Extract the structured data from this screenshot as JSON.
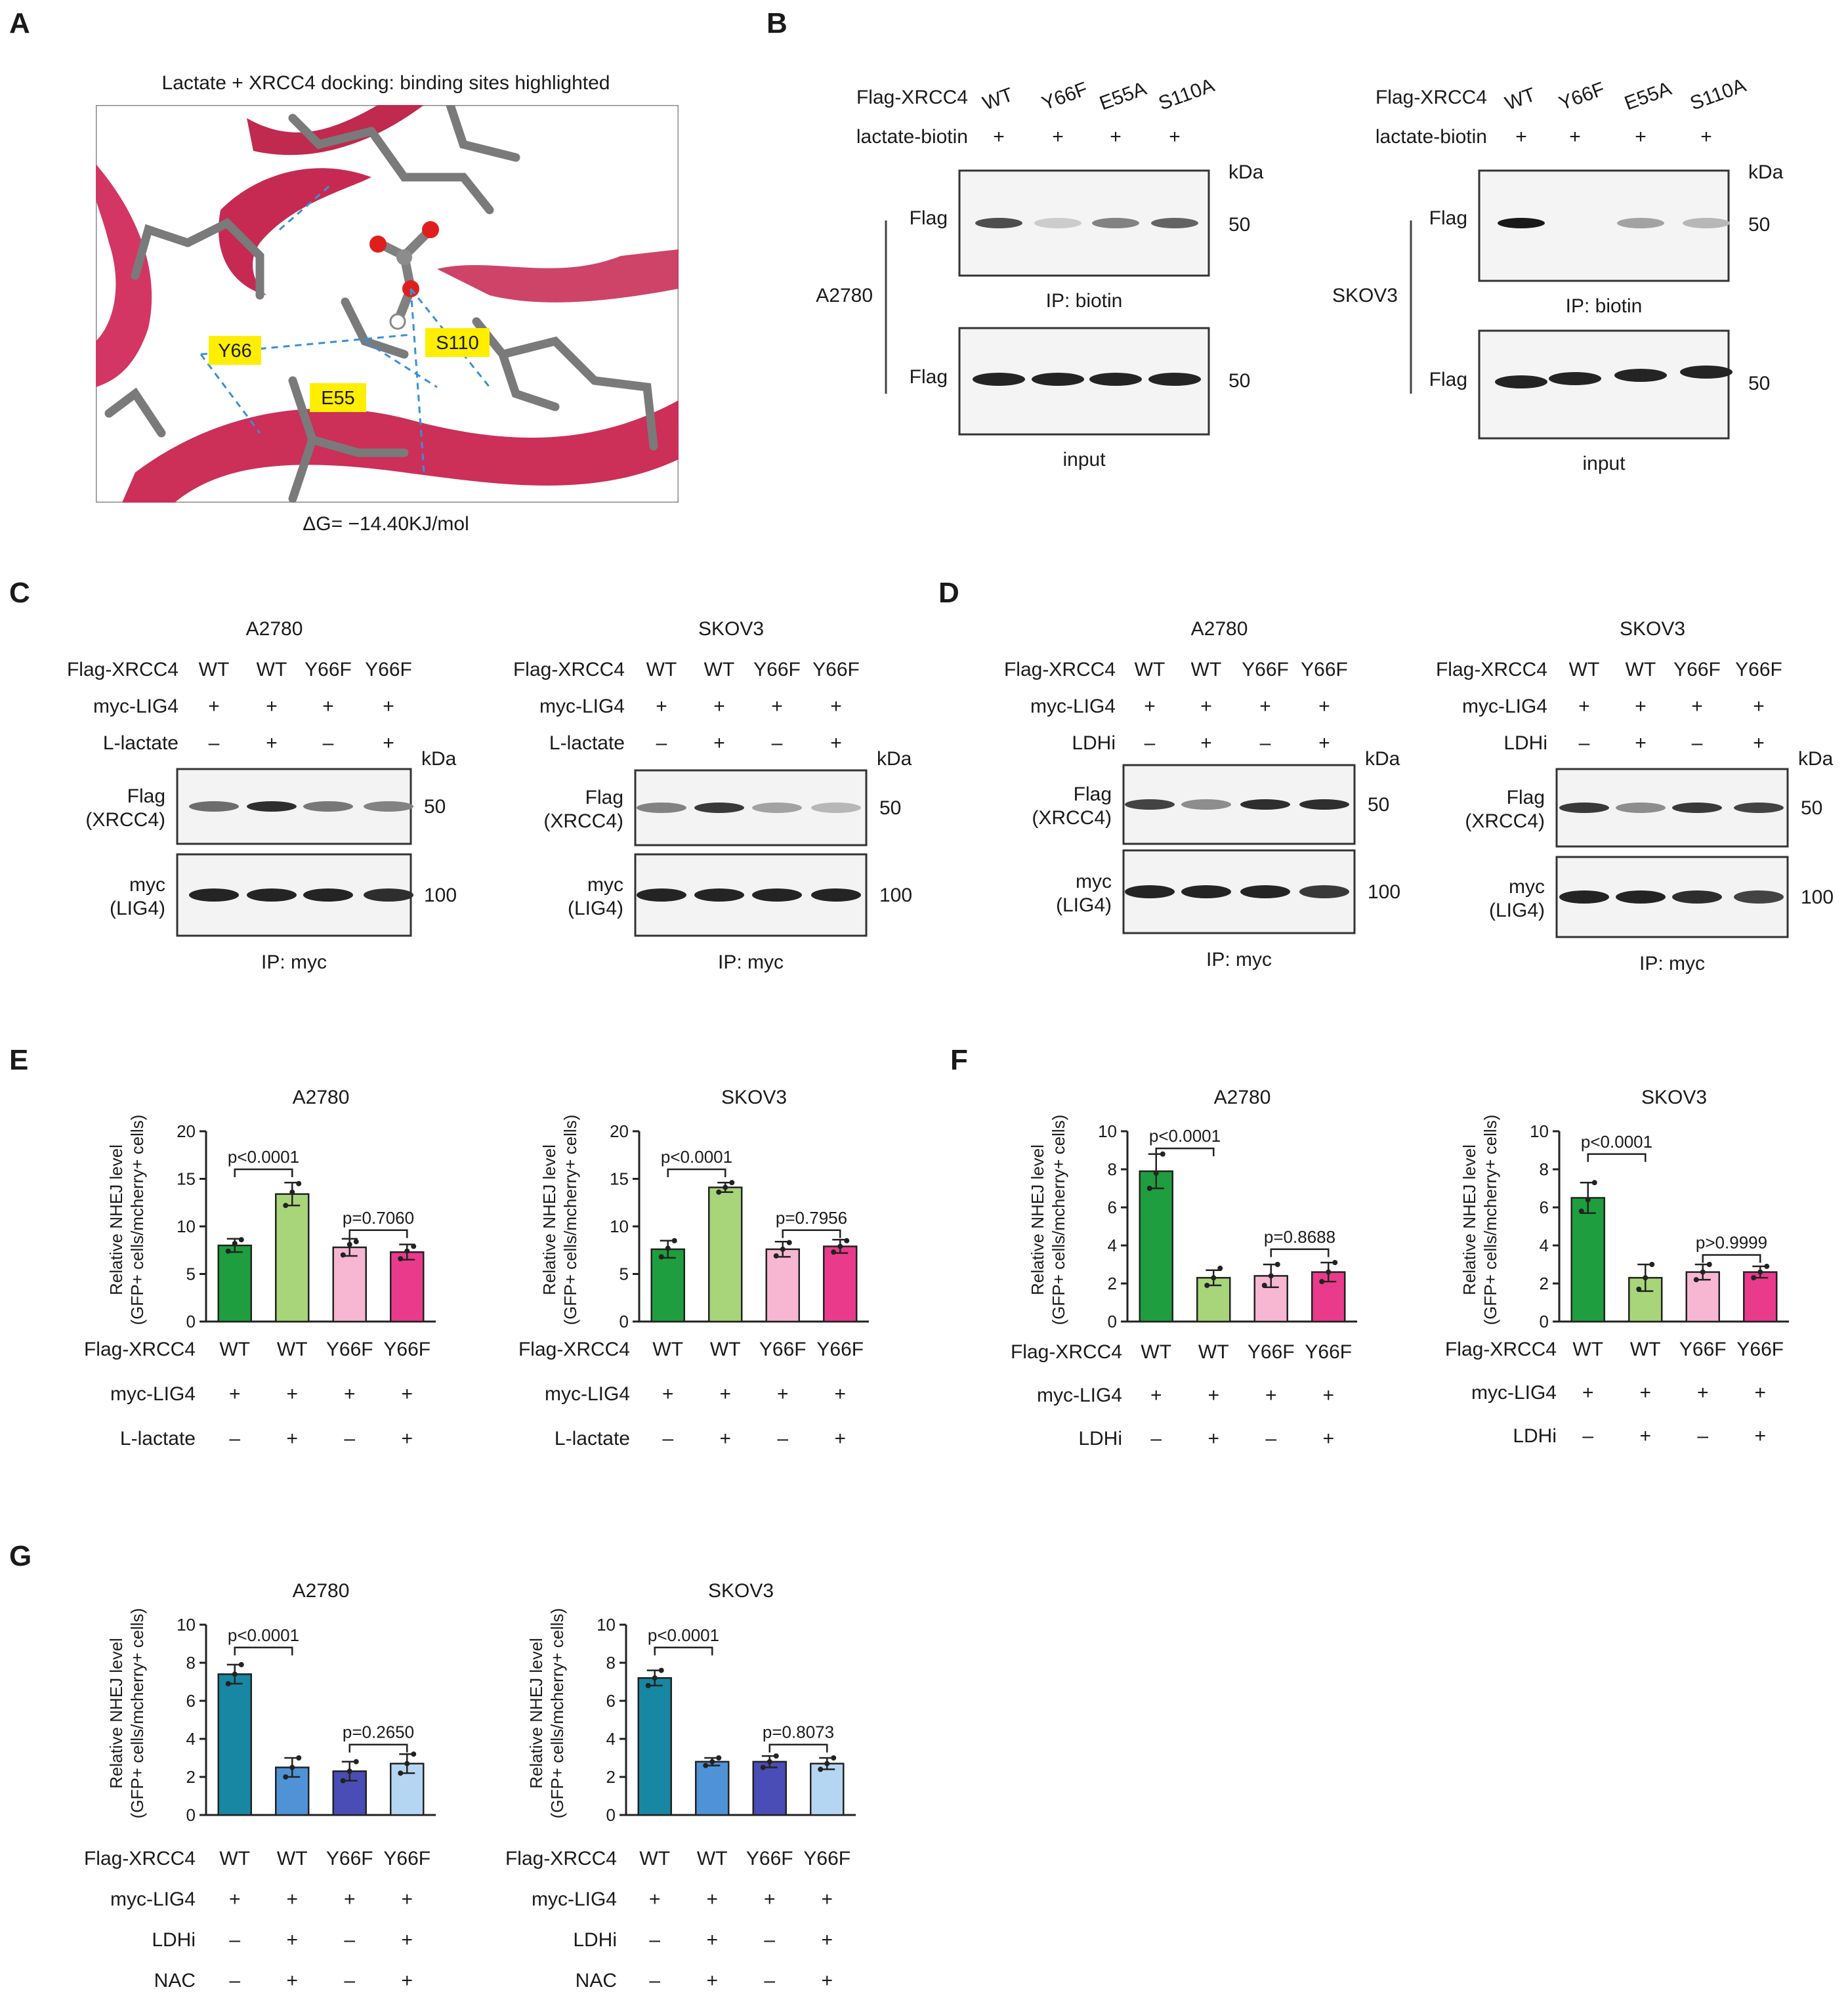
{
  "panels": {
    "A": {
      "letter": "A",
      "title": "Lactate + XRCC4  docking: binding sites highlighted",
      "residues": [
        "Y66",
        "S110",
        "E55"
      ],
      "energy": "ΔG= −14.40KJ/mol"
    },
    "B": {
      "letter": "B",
      "blots": [
        {
          "cell": "A2780",
          "row1_label": "Flag-XRCC4",
          "lanes": [
            "WT",
            "Y66F",
            "E55A",
            "S110A"
          ],
          "row2_label": "lactate-biotin",
          "row2_values": [
            "+",
            "+",
            "+",
            "+"
          ],
          "kda": "kDa",
          "band_label": "Flag",
          "mw": "50",
          "ip_caption": "IP: biotin",
          "input_caption": "input",
          "ip_intensity": [
            0.75,
            0.15,
            0.5,
            0.65
          ],
          "input_intensity": [
            0.95,
            0.95,
            0.95,
            0.95
          ]
        },
        {
          "cell": "SKOV3",
          "row1_label": "Flag-XRCC4",
          "lanes": [
            "WT",
            "Y66F",
            "E55A",
            "S110A"
          ],
          "row2_label": "lactate-biotin",
          "row2_values": [
            "+",
            "+",
            "+",
            "+"
          ],
          "kda": "kDa",
          "band_label": "Flag",
          "mw": "50",
          "ip_caption": "IP: biotin",
          "input_caption": "input",
          "ip_intensity": [
            1.0,
            0.0,
            0.35,
            0.25
          ],
          "input_intensity": [
            0.95,
            0.95,
            0.95,
            0.95
          ]
        }
      ]
    },
    "C": {
      "letter": "C",
      "blots": [
        {
          "cell": "A2780",
          "rows": [
            {
              "label": "Flag-XRCC4",
              "values": [
                "WT",
                "WT",
                "Y66F",
                "Y66F"
              ]
            },
            {
              "label": "myc-LIG4",
              "values": [
                "+",
                "+",
                "+",
                "+"
              ]
            },
            {
              "label": "L-lactate",
              "values": [
                "–",
                "+",
                "–",
                "+"
              ]
            }
          ],
          "kda": "kDa",
          "band1": [
            "Flag",
            "(XRCC4)"
          ],
          "band1_mw": "50",
          "band2": [
            "myc",
            "(LIG4)"
          ],
          "band2_mw": "100",
          "caption": "IP: myc",
          "band1_intensity": [
            0.6,
            0.9,
            0.55,
            0.5
          ],
          "band2_intensity": [
            0.95,
            0.95,
            0.95,
            0.9
          ]
        },
        {
          "cell": "SKOV3",
          "rows": [
            {
              "label": "Flag-XRCC4",
              "values": [
                "WT",
                "WT",
                "Y66F",
                "Y66F"
              ]
            },
            {
              "label": "myc-LIG4",
              "values": [
                "+",
                "+",
                "+",
                "+"
              ]
            },
            {
              "label": "L-lactate",
              "values": [
                "–",
                "+",
                "–",
                "+"
              ]
            }
          ],
          "kda": "kDa",
          "band1": [
            "Flag",
            "(XRCC4)"
          ],
          "band1_mw": "50",
          "band2": [
            "myc",
            "(LIG4)"
          ],
          "band2_mw": "100",
          "caption": "IP: myc",
          "band1_intensity": [
            0.5,
            0.85,
            0.35,
            0.25
          ],
          "band2_intensity": [
            0.95,
            0.95,
            0.95,
            0.95
          ]
        }
      ]
    },
    "D": {
      "letter": "D",
      "blots": [
        {
          "cell": "A2780",
          "rows": [
            {
              "label": "Flag-XRCC4",
              "values": [
                "WT",
                "WT",
                "Y66F",
                "Y66F"
              ]
            },
            {
              "label": "myc-LIG4",
              "values": [
                "+",
                "+",
                "+",
                "+"
              ]
            },
            {
              "label": "LDHi",
              "values": [
                "–",
                "+",
                "–",
                "+"
              ]
            }
          ],
          "kda": "kDa",
          "band1": [
            "Flag",
            "(XRCC4)"
          ],
          "band1_mw": "50",
          "band2": [
            "myc",
            "(LIG4)"
          ],
          "band2_mw": "100",
          "caption": "IP: myc",
          "band1_intensity": [
            0.8,
            0.45,
            0.9,
            0.9
          ],
          "band2_intensity": [
            0.95,
            0.95,
            0.95,
            0.85
          ]
        },
        {
          "cell": "SKOV3",
          "rows": [
            {
              "label": "Flag-XRCC4",
              "values": [
                "WT",
                "WT",
                "Y66F",
                "Y66F"
              ]
            },
            {
              "label": "myc-LIG4",
              "values": [
                "+",
                "+",
                "+",
                "+"
              ]
            },
            {
              "label": "LDHi",
              "values": [
                "–",
                "+",
                "–",
                "+"
              ]
            }
          ],
          "kda": "kDa",
          "band1": [
            "Flag",
            "(XRCC4)"
          ],
          "band1_mw": "50",
          "band2": [
            "myc",
            "(LIG4)"
          ],
          "band2_mw": "100",
          "caption": "IP: myc",
          "band1_intensity": [
            0.85,
            0.45,
            0.85,
            0.8
          ],
          "band2_intensity": [
            0.95,
            0.95,
            0.9,
            0.8
          ]
        }
      ]
    },
    "E": {
      "letter": "E"
    },
    "F": {
      "letter": "F"
    },
    "G": {
      "letter": "G"
    }
  },
  "chart_data": [
    {
      "id": "E-A2780",
      "panel": "E",
      "type": "bar",
      "title": "A2780",
      "ylabel": [
        "Relative NHEJ level",
        "(GFP+ cells/mcherry+ cells)"
      ],
      "ylim": [
        0,
        20
      ],
      "yticks": [
        0,
        5,
        10,
        15,
        20
      ],
      "categories": [
        "WT",
        "WT",
        "Y66F",
        "Y66F"
      ],
      "values": [
        8.0,
        13.4,
        7.8,
        7.3
      ],
      "errors": [
        0.7,
        1.2,
        0.9,
        0.8
      ],
      "colors": [
        "#1e9e3e",
        "#a8d47a",
        "#f7b6d2",
        "#ea3a8c"
      ],
      "points": [
        [
          7.4,
          8.2,
          8.6
        ],
        [
          12.2,
          13.6,
          14.5
        ],
        [
          7.0,
          8.1,
          8.4
        ],
        [
          6.6,
          7.4,
          7.9
        ]
      ],
      "comparisons": [
        {
          "a": 0,
          "b": 1,
          "text": "p<0.0001",
          "level": 16.0
        },
        {
          "a": 2,
          "b": 3,
          "text": "p=0.7060",
          "level": 9.6
        }
      ],
      "rows": [
        {
          "label": "Flag-XRCC4",
          "values": [
            "WT",
            "WT",
            "Y66F",
            "Y66F"
          ]
        },
        {
          "label": "myc-LIG4",
          "values": [
            "+",
            "+",
            "+",
            "+"
          ]
        },
        {
          "label": "L-lactate",
          "values": [
            "–",
            "+",
            "–",
            "+"
          ]
        }
      ]
    },
    {
      "id": "E-SKOV3",
      "panel": "E",
      "type": "bar",
      "title": "SKOV3",
      "ylabel": [
        "Relative NHEJ level",
        "(GFP+ cells/mcherry+ cells)"
      ],
      "ylim": [
        0,
        20
      ],
      "yticks": [
        0,
        5,
        10,
        15,
        20
      ],
      "categories": [
        "WT",
        "WT",
        "Y66F",
        "Y66F"
      ],
      "values": [
        7.6,
        14.1,
        7.6,
        7.9
      ],
      "errors": [
        0.9,
        0.5,
        0.8,
        0.7
      ],
      "colors": [
        "#1e9e3e",
        "#a8d47a",
        "#f7b6d2",
        "#ea3a8c"
      ],
      "points": [
        [
          6.8,
          7.7,
          8.5
        ],
        [
          13.6,
          14.1,
          14.6
        ],
        [
          6.9,
          7.6,
          8.3
        ],
        [
          7.3,
          7.9,
          8.5
        ]
      ],
      "comparisons": [
        {
          "a": 0,
          "b": 1,
          "text": "p<0.0001",
          "level": 16.0
        },
        {
          "a": 2,
          "b": 3,
          "text": "p=0.7956",
          "level": 9.6
        }
      ],
      "rows": [
        {
          "label": "Flag-XRCC4",
          "values": [
            "WT",
            "WT",
            "Y66F",
            "Y66F"
          ]
        },
        {
          "label": "myc-LIG4",
          "values": [
            "+",
            "+",
            "+",
            "+"
          ]
        },
        {
          "label": "L-lactate",
          "values": [
            "–",
            "+",
            "–",
            "+"
          ]
        }
      ]
    },
    {
      "id": "F-A2780",
      "panel": "F",
      "type": "bar",
      "title": "A2780",
      "ylabel": [
        "Relative NHEJ level",
        "(GFP+ cells/mcherry+ cells)"
      ],
      "ylim": [
        0,
        10
      ],
      "yticks": [
        0,
        2,
        4,
        6,
        8,
        10
      ],
      "categories": [
        "WT",
        "WT",
        "Y66F",
        "Y66F"
      ],
      "values": [
        7.9,
        2.3,
        2.4,
        2.6
      ],
      "errors": [
        0.9,
        0.4,
        0.6,
        0.5
      ],
      "colors": [
        "#1e9e3e",
        "#a8d47a",
        "#f7b6d2",
        "#ea3a8c"
      ],
      "points": [
        [
          7.0,
          7.8,
          8.8
        ],
        [
          1.9,
          2.3,
          2.8
        ],
        [
          1.9,
          2.4,
          3.0
        ],
        [
          2.1,
          2.6,
          3.1
        ]
      ],
      "comparisons": [
        {
          "a": 0,
          "b": 1,
          "text": "p<0.0001",
          "level": 9.1
        },
        {
          "a": 2,
          "b": 3,
          "text": "p=0.8688",
          "level": 3.8
        }
      ],
      "rows": [
        {
          "label": "Flag-XRCC4",
          "values": [
            "WT",
            "WT",
            "Y66F",
            "Y66F"
          ]
        },
        {
          "label": "myc-LIG4",
          "values": [
            "+",
            "+",
            "+",
            "+"
          ]
        },
        {
          "label": "LDHi",
          "values": [
            "–",
            "+",
            "–",
            "+"
          ]
        }
      ]
    },
    {
      "id": "F-SKOV3",
      "panel": "F",
      "type": "bar",
      "title": "SKOV3",
      "ylabel": [
        "Relative NHEJ level",
        "(GFP+ cells/mcherry+ cells)"
      ],
      "ylim": [
        0,
        10
      ],
      "yticks": [
        0,
        2,
        4,
        6,
        8,
        10
      ],
      "categories": [
        "WT",
        "WT",
        "Y66F",
        "Y66F"
      ],
      "values": [
        6.5,
        2.3,
        2.6,
        2.6
      ],
      "errors": [
        0.8,
        0.7,
        0.4,
        0.3
      ],
      "colors": [
        "#1e9e3e",
        "#a8d47a",
        "#f7b6d2",
        "#ea3a8c"
      ],
      "points": [
        [
          5.8,
          6.4,
          7.3
        ],
        [
          1.7,
          2.3,
          3.0
        ],
        [
          2.2,
          2.6,
          3.0
        ],
        [
          2.3,
          2.6,
          2.9
        ]
      ],
      "comparisons": [
        {
          "a": 0,
          "b": 1,
          "text": "p<0.0001",
          "level": 8.8
        },
        {
          "a": 2,
          "b": 3,
          "text": "p>0.9999",
          "level": 3.5
        }
      ],
      "rows": [
        {
          "label": "Flag-XRCC4",
          "values": [
            "WT",
            "WT",
            "Y66F",
            "Y66F"
          ]
        },
        {
          "label": "myc-LIG4",
          "values": [
            "+",
            "+",
            "+",
            "+"
          ]
        },
        {
          "label": "LDHi",
          "values": [
            "–",
            "+",
            "–",
            "+"
          ]
        }
      ]
    },
    {
      "id": "G-A2780",
      "panel": "G",
      "type": "bar",
      "title": "A2780",
      "ylabel": [
        "Relative NHEJ level",
        "(GFP+ cells/mcherry+ cells)"
      ],
      "ylim": [
        0,
        10
      ],
      "yticks": [
        0,
        2,
        4,
        6,
        8,
        10
      ],
      "categories": [
        "WT",
        "WT",
        "Y66F",
        "Y66F"
      ],
      "values": [
        7.4,
        2.5,
        2.3,
        2.7
      ],
      "errors": [
        0.5,
        0.5,
        0.5,
        0.5
      ],
      "colors": [
        "#1787a3",
        "#4f93d6",
        "#4a4db5",
        "#b5d6f2"
      ],
      "points": [
        [
          6.9,
          7.4,
          7.9
        ],
        [
          2.0,
          2.5,
          3.0
        ],
        [
          1.8,
          2.3,
          2.8
        ],
        [
          2.2,
          2.7,
          3.2
        ]
      ],
      "comparisons": [
        {
          "a": 0,
          "b": 1,
          "text": "p<0.0001",
          "level": 8.8
        },
        {
          "a": 2,
          "b": 3,
          "text": "p=0.2650",
          "level": 3.7
        }
      ],
      "rows": [
        {
          "label": "Flag-XRCC4",
          "values": [
            "WT",
            "WT",
            "Y66F",
            "Y66F"
          ]
        },
        {
          "label": "myc-LIG4",
          "values": [
            "+",
            "+",
            "+",
            "+"
          ]
        },
        {
          "label": "LDHi",
          "values": [
            "–",
            "+",
            "–",
            "+"
          ]
        },
        {
          "label": "NAC",
          "values": [
            "–",
            "+",
            "–",
            "+"
          ]
        }
      ]
    },
    {
      "id": "G-SKOV3",
      "panel": "G",
      "type": "bar",
      "title": "SKOV3",
      "ylabel": [
        "Relative NHEJ level",
        "(GFP+ cells/mcherry+ cells)"
      ],
      "ylim": [
        0,
        10
      ],
      "yticks": [
        0,
        2,
        4,
        6,
        8,
        10
      ],
      "categories": [
        "WT",
        "WT",
        "Y66F",
        "Y66F"
      ],
      "values": [
        7.2,
        2.8,
        2.8,
        2.7
      ],
      "errors": [
        0.4,
        0.2,
        0.3,
        0.3
      ],
      "colors": [
        "#1787a3",
        "#4f93d6",
        "#4a4db5",
        "#b5d6f2"
      ],
      "points": [
        [
          6.8,
          7.2,
          7.6
        ],
        [
          2.6,
          2.8,
          3.0
        ],
        [
          2.5,
          2.8,
          3.1
        ],
        [
          2.4,
          2.7,
          3.0
        ]
      ],
      "comparisons": [
        {
          "a": 0,
          "b": 1,
          "text": "p<0.0001",
          "level": 8.8
        },
        {
          "a": 2,
          "b": 3,
          "text": "p=0.8073",
          "level": 3.7
        }
      ],
      "rows": [
        {
          "label": "Flag-XRCC4",
          "values": [
            "WT",
            "WT",
            "Y66F",
            "Y66F"
          ]
        },
        {
          "label": "myc-LIG4",
          "values": [
            "+",
            "+",
            "+",
            "+"
          ]
        },
        {
          "label": "LDHi",
          "values": [
            "–",
            "+",
            "–",
            "+"
          ]
        },
        {
          "label": "NAC",
          "values": [
            "–",
            "+",
            "–",
            "+"
          ]
        }
      ]
    }
  ]
}
